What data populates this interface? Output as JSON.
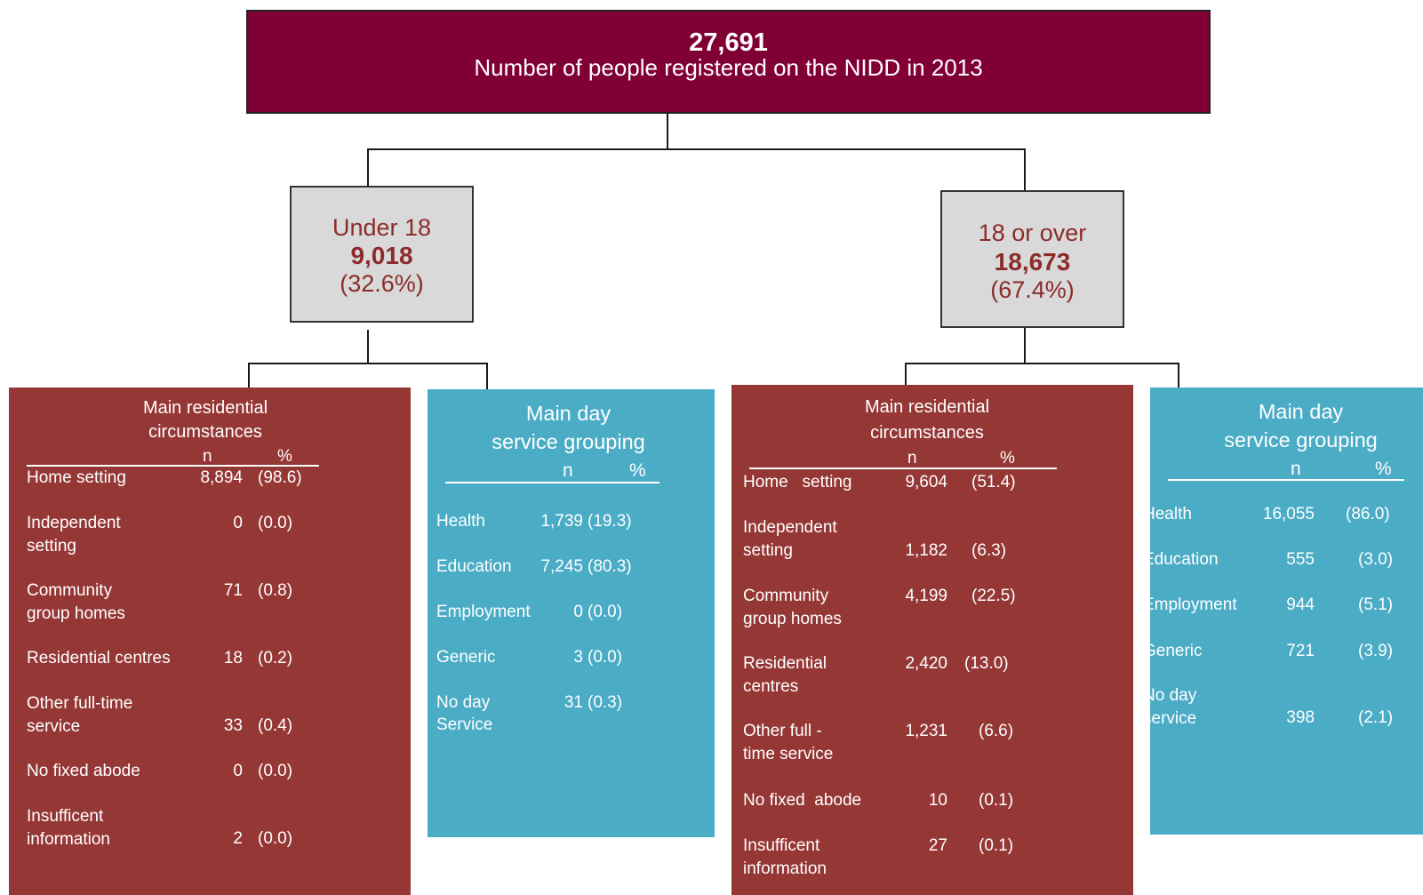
{
  "colors": {
    "top_fill": "#800035",
    "age_fill": "#d9d9d9",
    "age_text": "#8b2c2a",
    "residential_fill": "#953735",
    "day_fill": "#4bacc6",
    "connector": "#1a1a1a"
  },
  "top": {
    "count": "27,691",
    "label": "Number of people registered on the NIDD in 2013"
  },
  "under18": {
    "label": "Under 18",
    "count": "9,018",
    "pct": "(32.6%)"
  },
  "over18": {
    "label": "18 or over",
    "count": "18,673",
    "pct": "(67.4%)"
  },
  "under18_residential": {
    "title_line1": "Main residential",
    "title_line2": "circumstances",
    "col_n": "n",
    "col_pct": "%",
    "rows": [
      {
        "label1": "Home setting",
        "label2": "",
        "n": "8,894",
        "pct": "(98.6)"
      },
      {
        "label1": "Independent",
        "label2": "setting",
        "n": "0",
        "pct": "(0.0)"
      },
      {
        "label1": "Community",
        "label2": "group homes",
        "n": "71",
        "pct": "(0.8)"
      },
      {
        "label1": "Residential centres",
        "label2": "",
        "n": "18",
        "pct": "(0.2)"
      },
      {
        "label1": "Other full-time",
        "label2": "service",
        "n": "33",
        "pct": "(0.4)"
      },
      {
        "label1": "No fixed abode",
        "label2": "",
        "n": "0",
        "pct": "(0.0)"
      },
      {
        "label1": "Insufficent",
        "label2": "information",
        "n": "2",
        "pct": "(0.0)"
      }
    ]
  },
  "under18_day": {
    "title_line1": "Main day",
    "title_line2": "service grouping",
    "col_n": "n",
    "col_pct": "%",
    "rows": [
      {
        "label1": "Health",
        "label2": "",
        "n": "1,739",
        "pct": "(19.3)"
      },
      {
        "label1": "Education",
        "label2": "",
        "n": "7,245",
        "pct": "(80.3)"
      },
      {
        "label1": "Employment",
        "label2": "",
        "n": "0",
        "pct": "(0.0)"
      },
      {
        "label1": "Generic",
        "label2": "",
        "n": "3",
        "pct": "(0.0)"
      },
      {
        "label1": "No day",
        "label2": "Service",
        "n": "31",
        "pct": "(0.3)"
      }
    ]
  },
  "over18_residential": {
    "title_line1": "Main residential",
    "title_line2": "circumstances",
    "col_n": "n",
    "col_pct": "%",
    "rows": [
      {
        "label1": "Home   setting",
        "label2": "",
        "n": "9,604",
        "pct": "(51.4)"
      },
      {
        "label1": "Independent",
        "label2": "setting",
        "n": "1,182",
        "pct": "(6.3)"
      },
      {
        "label1": "Community",
        "label2": "group homes",
        "n": "4,199",
        "pct": "(22.5)"
      },
      {
        "label1": "Residential",
        "label2": "centres",
        "n": "2,420",
        "pct": "(13.0)"
      },
      {
        "label1": "Other full -",
        "label2": "time service",
        "n": "1,231",
        "pct": "(6.6)"
      },
      {
        "label1": "No fixed  abode",
        "label2": "",
        "n": "10",
        "pct": "(0.1)"
      },
      {
        "label1": "Insufficent",
        "label2": "information",
        "n": "27",
        "pct": "(0.1)"
      }
    ]
  },
  "over18_day": {
    "title_line1": "Main day",
    "title_line2": "service grouping",
    "col_n": "n",
    "col_pct": "%",
    "rows": [
      {
        "label1": "Health",
        "label2": "",
        "n": "16,055",
        "pct": "(86.0)"
      },
      {
        "label1": "Education",
        "label2": "",
        "n": "555",
        "pct": "(3.0)"
      },
      {
        "label1": "Employment",
        "label2": "",
        "n": "944",
        "pct": "(5.1)"
      },
      {
        "label1": "Generic",
        "label2": "",
        "n": "721",
        "pct": "(3.9)"
      },
      {
        "label1": "No day",
        "label2": "service",
        "n": "398",
        "pct": "(2.1)"
      }
    ]
  }
}
